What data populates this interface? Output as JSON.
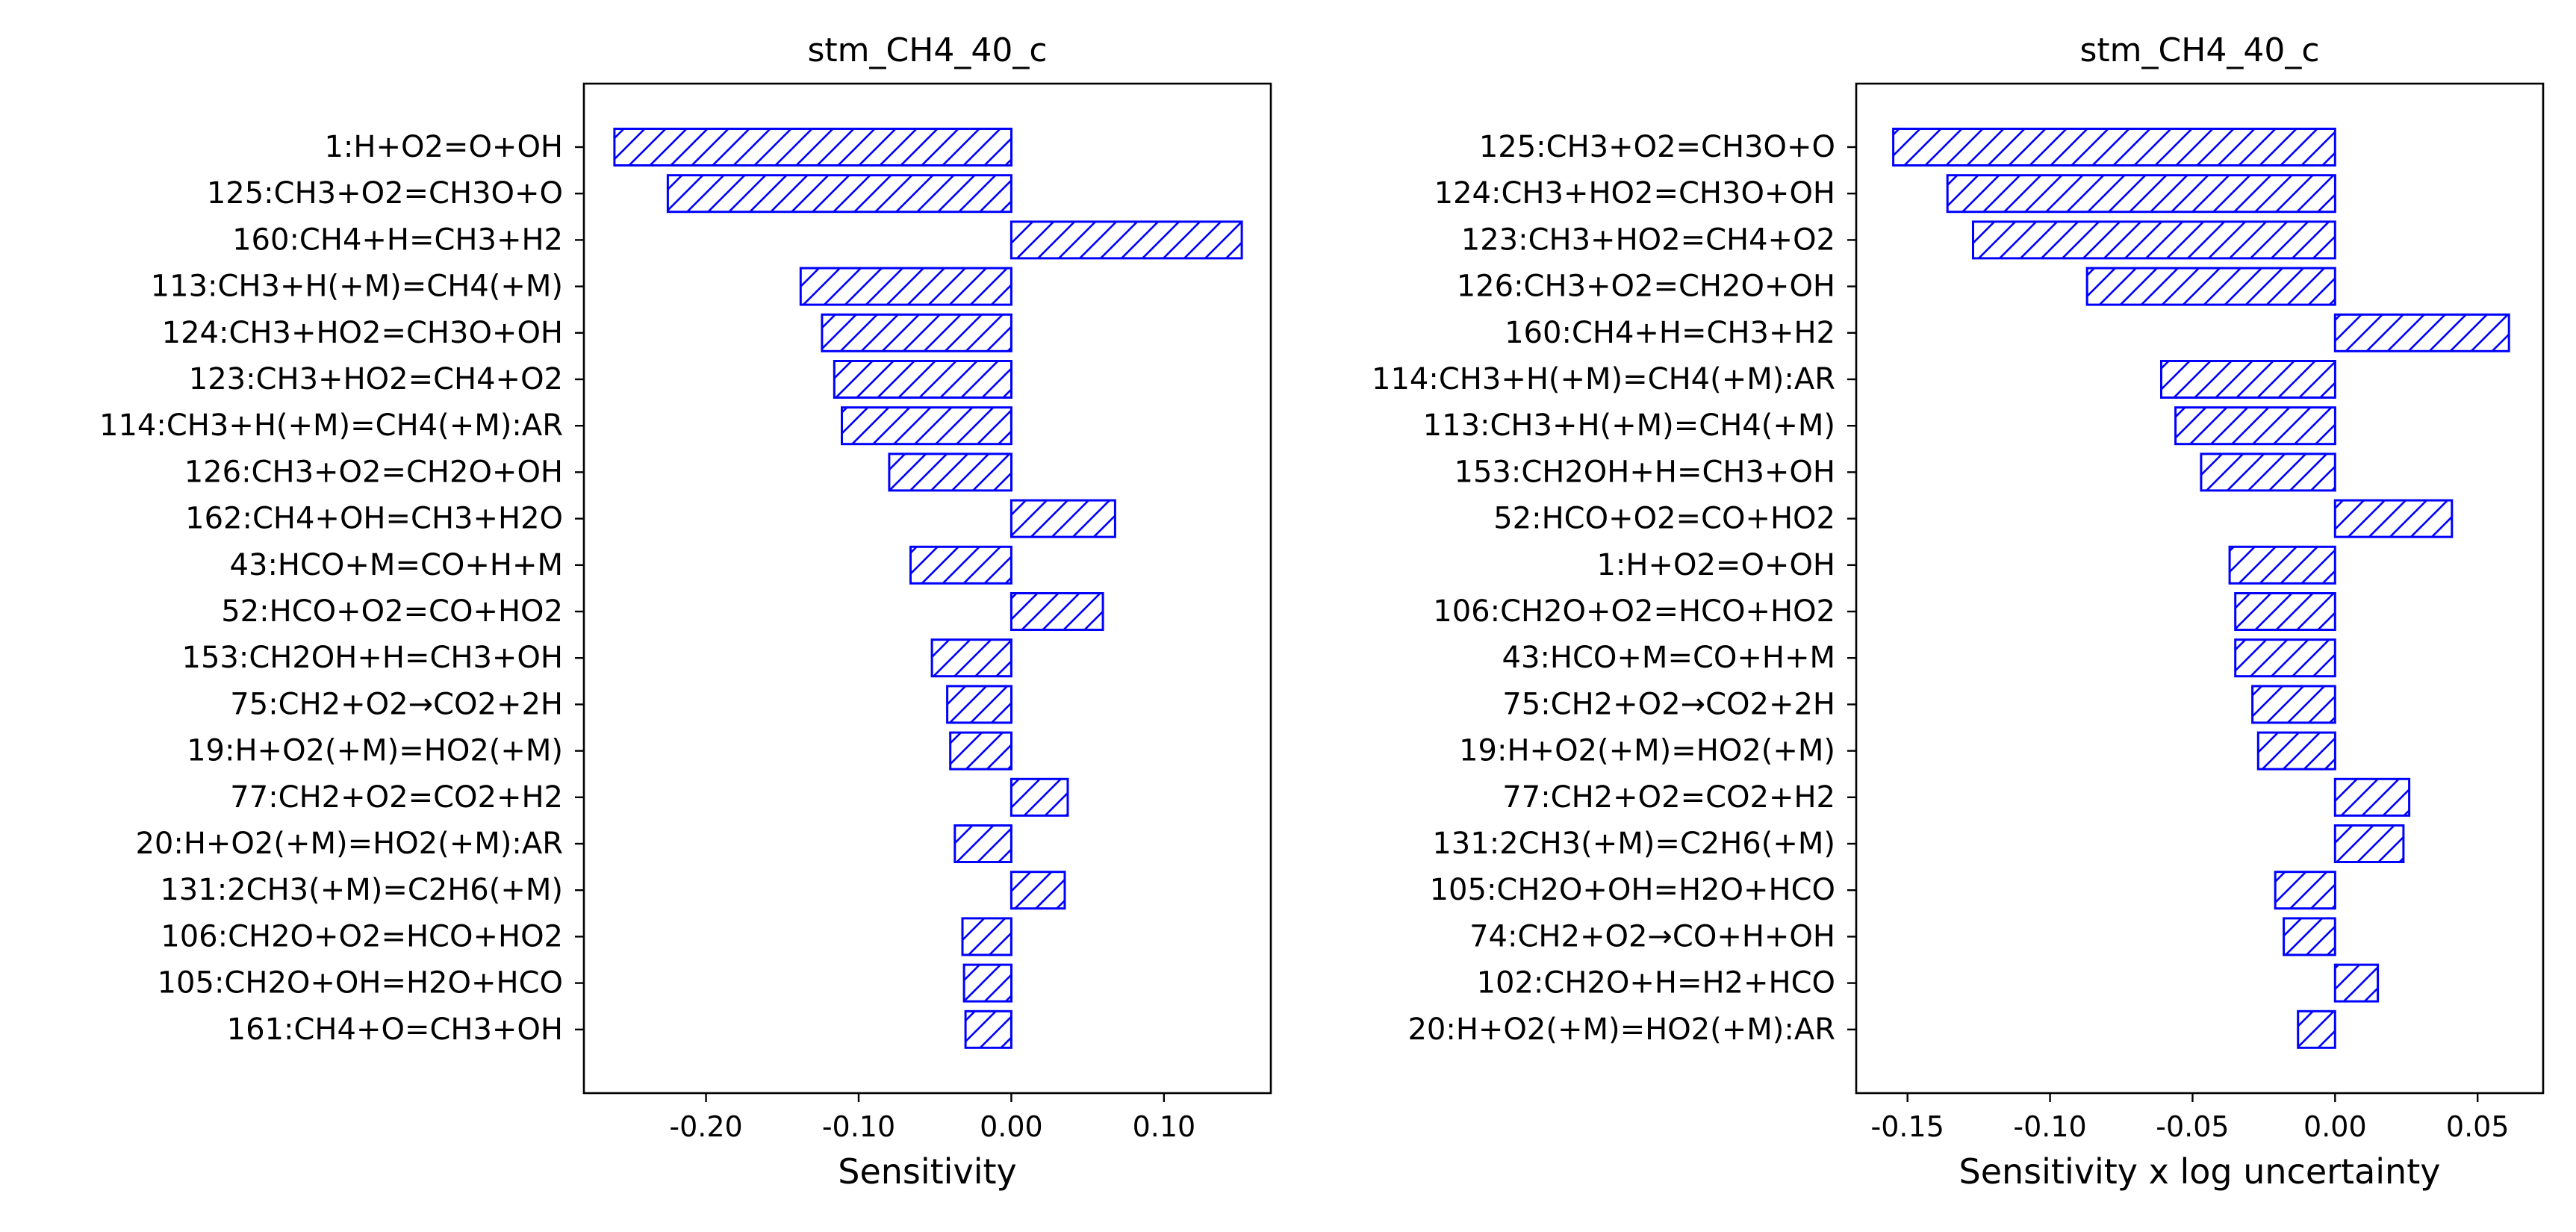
{
  "colors": {
    "bar_edge": "#0000ff",
    "bar_fill": "#ffffff",
    "axis": "#000000",
    "text": "#000000"
  },
  "chart_data": [
    {
      "type": "bar",
      "orientation": "horizontal",
      "title": "stm_CH4_40_c",
      "xlabel": "Sensitivity",
      "ylabel": "",
      "xlim": [
        -0.28,
        0.17
      ],
      "xticks": [
        -0.2,
        -0.1,
        0.0,
        0.1
      ],
      "xtick_labels": [
        "-0.20",
        "-0.10",
        "0.00",
        "0.10"
      ],
      "hatch": "diagonal",
      "grid": false,
      "categories": [
        "1:H+O2=O+OH",
        "125:CH3+O2=CH3O+O",
        "160:CH4+H=CH3+H2",
        "113:CH3+H(+M)=CH4(+M)",
        "124:CH3+HO2=CH3O+OH",
        "123:CH3+HO2=CH4+O2",
        "114:CH3+H(+M)=CH4(+M):AR",
        "126:CH3+O2=CH2O+OH",
        "162:CH4+OH=CH3+H2O",
        "43:HCO+M=CO+H+M",
        "52:HCO+O2=CO+HO2",
        "153:CH2OH+H=CH3+OH",
        "75:CH2+O2→CO2+2H",
        "19:H+O2(+M)=HO2(+M)",
        "77:CH2+O2=CO2+H2",
        "20:H+O2(+M)=HO2(+M):AR",
        "131:2CH3(+M)=C2H6(+M)",
        "106:CH2O+O2=HCO+HO2",
        "105:CH2O+OH=H2O+HCO",
        "161:CH4+O=CH3+OH"
      ],
      "values": [
        -0.26,
        -0.225,
        0.151,
        -0.138,
        -0.124,
        -0.116,
        -0.111,
        -0.08,
        0.068,
        -0.066,
        0.06,
        -0.052,
        -0.042,
        -0.04,
        0.037,
        -0.037,
        0.035,
        -0.032,
        -0.031,
        -0.03
      ]
    },
    {
      "type": "bar",
      "orientation": "horizontal",
      "title": "stm_CH4_40_c",
      "xlabel": "Sensitivity x log uncertainty",
      "ylabel": "",
      "xlim": [
        -0.168,
        0.073
      ],
      "xticks": [
        -0.15,
        -0.1,
        -0.05,
        0.0,
        0.05
      ],
      "xtick_labels": [
        "-0.15",
        "-0.10",
        "-0.05",
        "0.00",
        "0.05"
      ],
      "hatch": "diagonal",
      "grid": false,
      "categories": [
        "125:CH3+O2=CH3O+O",
        "124:CH3+HO2=CH3O+OH",
        "123:CH3+HO2=CH4+O2",
        "126:CH3+O2=CH2O+OH",
        "160:CH4+H=CH3+H2",
        "114:CH3+H(+M)=CH4(+M):AR",
        "113:CH3+H(+M)=CH4(+M)",
        "153:CH2OH+H=CH3+OH",
        "52:HCO+O2=CO+HO2",
        "1:H+O2=O+OH",
        "106:CH2O+O2=HCO+HO2",
        "43:HCO+M=CO+H+M",
        "75:CH2+O2→CO2+2H",
        "19:H+O2(+M)=HO2(+M)",
        "77:CH2+O2=CO2+H2",
        "131:2CH3(+M)=C2H6(+M)",
        "105:CH2O+OH=H2O+HCO",
        "74:CH2+O2→CO+H+OH",
        "102:CH2O+H=H2+HCO",
        "20:H+O2(+M)=HO2(+M):AR"
      ],
      "values": [
        -0.155,
        -0.136,
        -0.127,
        -0.087,
        0.061,
        -0.061,
        -0.056,
        -0.047,
        0.041,
        -0.037,
        -0.035,
        -0.035,
        -0.029,
        -0.027,
        0.026,
        0.024,
        -0.021,
        -0.018,
        0.015,
        -0.013
      ]
    }
  ]
}
